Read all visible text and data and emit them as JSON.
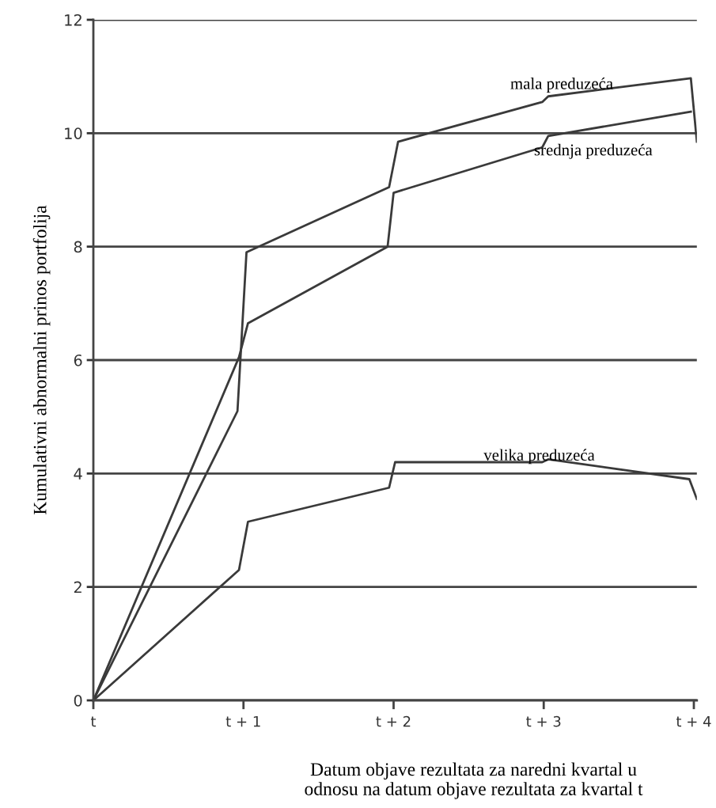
{
  "chart_data": {
    "type": "line",
    "xlabel": "Datum objave rezultata za naredni kvartal u\nodnosu na datum objave rezultata za kvartal t",
    "ylabel": "Kumulativni abnormalni prinos portfolija",
    "series": [
      {
        "name": "mala preduzeća",
        "color": "#3a3a3a",
        "x": [
          0,
          0.96,
          1.02,
          1.97,
          2.03,
          2.99,
          3.03,
          3.98,
          4.02
        ],
        "values": [
          0,
          5.1,
          7.9,
          9.05,
          9.85,
          10.55,
          10.65,
          10.97,
          9.85
        ]
      },
      {
        "name": "srednja preduzeća",
        "color": "#3a3a3a",
        "x": [
          0,
          0.97,
          1.03,
          1.96,
          2.0,
          2.99,
          3.03,
          3.98
        ],
        "values": [
          0,
          6.05,
          6.65,
          8.0,
          8.95,
          9.75,
          9.95,
          10.38
        ]
      },
      {
        "name": "velika preduzeća",
        "color": "#3a3a3a",
        "x": [
          0,
          0.97,
          1.03,
          1.97,
          2.01,
          2.99,
          3.03,
          3.97,
          4.02
        ],
        "values": [
          0,
          2.3,
          3.15,
          3.75,
          4.2,
          4.2,
          4.25,
          3.9,
          3.55
        ]
      }
    ],
    "xlim": [
      0,
      4.02
    ],
    "ylim": [
      0,
      12
    ],
    "xticks": [
      {
        "value": 0,
        "label": "t"
      },
      {
        "value": 1,
        "label": "t + 1"
      },
      {
        "value": 2,
        "label": "t + 2"
      },
      {
        "value": 3,
        "label": "t + 3"
      },
      {
        "value": 4,
        "label": "t + 4"
      }
    ],
    "yticks": [
      0,
      2,
      4,
      6,
      8,
      10,
      12
    ],
    "grid": "y",
    "legend": false,
    "marker": "none",
    "line_style": "solid"
  }
}
